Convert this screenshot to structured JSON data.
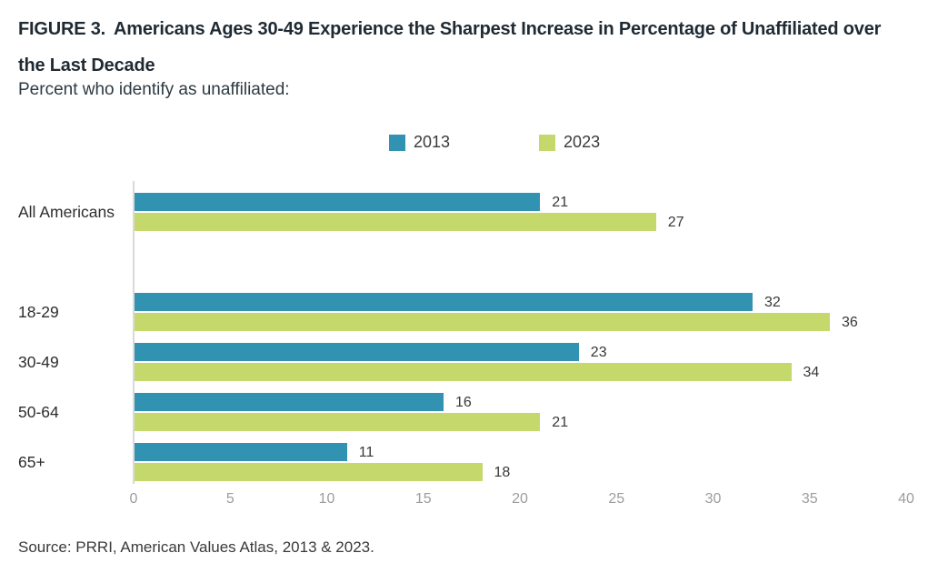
{
  "colors": {
    "title_text": "#1f2a33",
    "axis_line": "#d9d9d9",
    "tick_label": "#9c9c9c",
    "value_label": "#383838"
  },
  "chart_data": {
    "type": "bar",
    "orientation": "horizontal",
    "figure_label": "FIGURE 3.",
    "title": "Americans Ages 30-49 Experience the Sharpest Increase in Percentage of Unaffiliated over the Last Decade",
    "subtitle": "Percent who identify as unaffiliated:",
    "source": "Source: PRRI, American Values Atlas, 2013 & 2023.",
    "categories": [
      "All Americans",
      "18-29",
      "30-49",
      "50-64",
      "65+"
    ],
    "series": [
      {
        "name": "2013",
        "color": "#3192b2",
        "values": [
          21,
          32,
          23,
          16,
          11
        ]
      },
      {
        "name": "2023",
        "color": "#c4d86c",
        "values": [
          27,
          36,
          34,
          21,
          18
        ]
      }
    ],
    "x_ticks": [
      0,
      5,
      10,
      15,
      20,
      25,
      30,
      35,
      40
    ],
    "xlim": [
      0,
      40
    ],
    "xlabel": "",
    "ylabel": "",
    "grid": false,
    "value_labels": true,
    "legend_position": "top-center",
    "gap_after_category": "All Americans"
  }
}
